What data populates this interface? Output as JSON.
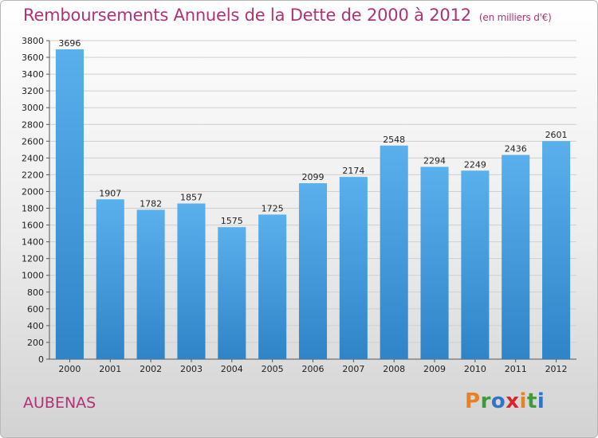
{
  "title": "Remboursements Annuels de la Dette de 2000 à 2012",
  "subtitle": "(en milliers d'€)",
  "city": "AUBENAS",
  "brand": {
    "text": "Proxiti",
    "letters": [
      {
        "ch": "P",
        "color": "#e8811f"
      },
      {
        "ch": "r",
        "color": "#3d9c3a"
      },
      {
        "ch": "o",
        "color": "#2e74c9"
      },
      {
        "ch": "x",
        "color": "#d9262b"
      },
      {
        "ch": "i",
        "color": "#e8811f"
      },
      {
        "ch": "t",
        "color": "#3d9c3a"
      },
      {
        "ch": "i",
        "color": "#2e74c9"
      }
    ]
  },
  "colors": {
    "title": "#b03275",
    "bar_top": "#5ab0ec",
    "bar_bottom": "#2f84c8",
    "grid": "#cfcfcf"
  },
  "chart_data": {
    "type": "bar",
    "categories": [
      "2000",
      "2001",
      "2002",
      "2003",
      "2004",
      "2005",
      "2006",
      "2007",
      "2008",
      "2009",
      "2010",
      "2011",
      "2012"
    ],
    "values": [
      3696,
      1907,
      1782,
      1857,
      1575,
      1725,
      2099,
      2174,
      2548,
      2294,
      2249,
      2436,
      2601
    ],
    "ylim": [
      0,
      3800
    ],
    "ytick_step": 200,
    "grid": true
  }
}
